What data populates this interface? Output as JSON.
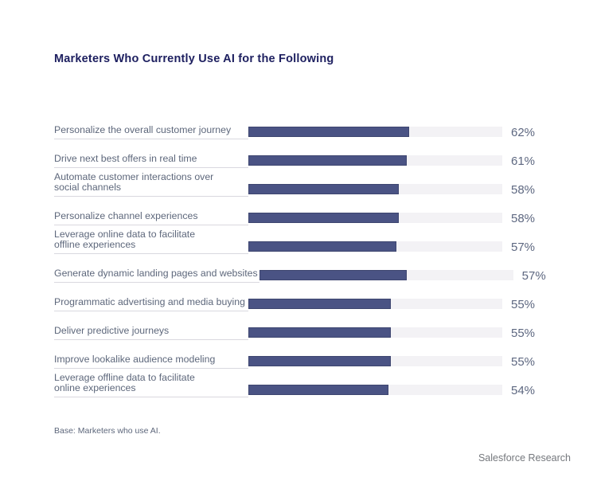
{
  "title": "Marketers Who Currently Use AI for the Following",
  "footnote": "Base: Marketers who use AI.",
  "source": "Salesforce Research",
  "colors": {
    "bar": "#4a5384",
    "bar-border": "#3e4670",
    "track": "#f3f2f5",
    "rule": "#d9d8df",
    "label": "#5d677b",
    "value": "#5d6780",
    "title": "#1e2060",
    "source": "#75787d"
  },
  "chart_data": {
    "type": "bar",
    "orientation": "horizontal",
    "title": "Marketers Who Currently Use AI for the Following",
    "categories": [
      "Personalize the overall customer journey",
      "Drive next best offers in real time",
      "Automate customer interactions over\nsocial channels",
      "Personalize channel experiences",
      "Leverage online data to facilitate\noffline experiences",
      "Generate dynamic landing pages and websites",
      "Programmatic advertising and media buying",
      "Deliver predictive journeys",
      "Improve lookalike audience modeling",
      "Leverage offline data to facilitate\nonline experiences"
    ],
    "values": [
      62,
      61,
      58,
      58,
      57,
      57,
      55,
      55,
      55,
      54
    ],
    "value_suffix": "%",
    "xlim": [
      0,
      100
    ],
    "grid": false,
    "legend": false,
    "value_labels_position": "right"
  }
}
